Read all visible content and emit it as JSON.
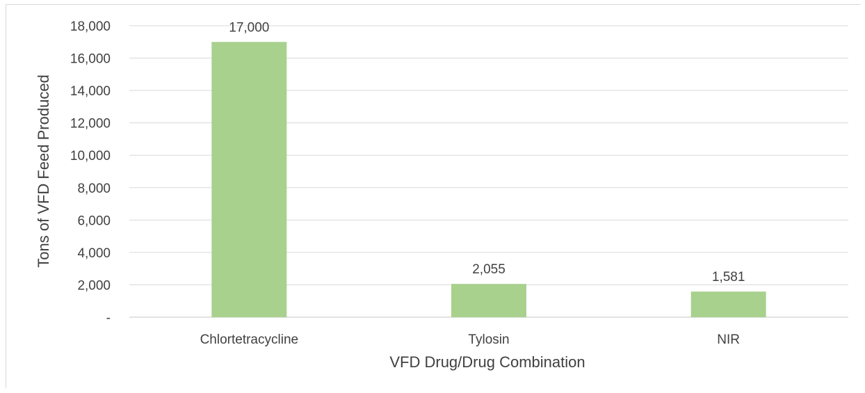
{
  "chart_data": {
    "type": "bar",
    "categories": [
      "Chlortetracycline",
      "Tylosin",
      "NIR"
    ],
    "values": [
      17000,
      2055,
      1581
    ],
    "data_labels": [
      "17,000",
      "2,055",
      "1,581"
    ],
    "title": "",
    "xlabel": "VFD Drug/Drug Combination",
    "ylabel": "Tons of VFD Feed Produced",
    "ylim": [
      0,
      18000
    ],
    "yticks": [
      0,
      2000,
      4000,
      6000,
      8000,
      10000,
      12000,
      14000,
      16000,
      18000
    ],
    "ytick_labels": [
      "-",
      "2,000",
      "4,000",
      "6,000",
      "8,000",
      "10,000",
      "12,000",
      "14,000",
      "16,000",
      "18,000"
    ],
    "grid": true,
    "legend": "none",
    "bar_color": "#a9d18e"
  }
}
